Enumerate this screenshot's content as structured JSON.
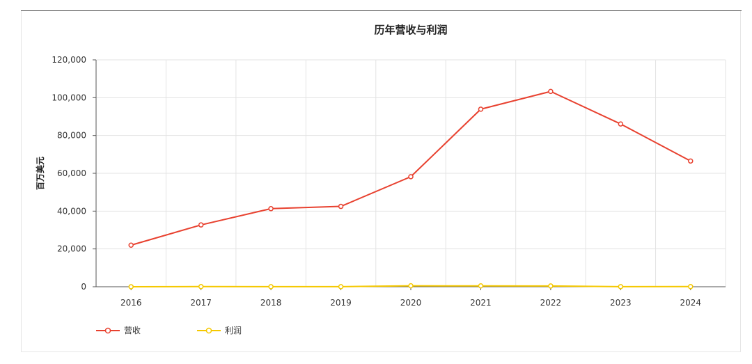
{
  "chart_data": {
    "type": "line",
    "title": "历年营收与利润",
    "xlabel": "",
    "ylabel": "百万美元",
    "categories": [
      "2016",
      "2017",
      "2018",
      "2019",
      "2020",
      "2021",
      "2022",
      "2023",
      "2024"
    ],
    "ylim": [
      0,
      120000
    ],
    "yticks": [
      "0",
      "20,000",
      "40,000",
      "60,000",
      "80,000",
      "100,000",
      "120,000"
    ],
    "grid": true,
    "legend": "bottom-left",
    "series": [
      {
        "name": "营收",
        "color": "#e8412f",
        "values": [
          22000,
          32700,
          41300,
          42500,
          58200,
          93900,
          103300,
          86100,
          66500
        ]
      },
      {
        "name": "利润",
        "color": "#f5c800",
        "values": [
          20,
          80,
          50,
          40,
          500,
          450,
          400,
          60,
          70
        ]
      }
    ]
  }
}
